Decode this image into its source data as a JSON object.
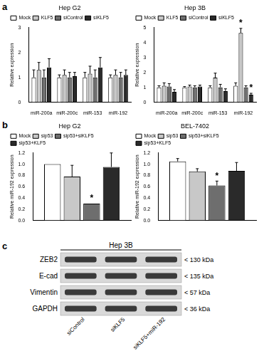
{
  "panel_labels": [
    "a",
    "b"
  ],
  "chart_data": [
    {
      "type": "bar",
      "title": "Hep G2",
      "y_label": "Relative expression",
      "categories": [
        "miR-200a",
        "miR-200c",
        "miR-153",
        "miR-192"
      ],
      "series": [
        {
          "name": "Mock",
          "color": "#ffffff",
          "values": [
            1,
            1,
            1,
            1
          ],
          "errors": [
            0.3,
            0.1,
            0.2,
            0.1
          ]
        },
        {
          "name": "KLF5",
          "color": "#c8c8c8",
          "values": [
            1.3,
            1.1,
            1.15,
            1.1
          ],
          "errors": [
            0.3,
            0.2,
            0.3,
            0.2
          ]
        },
        {
          "name": "siControl",
          "color": "#6e6e6e",
          "values": [
            1,
            1,
            1,
            1
          ],
          "errors": [
            0.3,
            0.2,
            0.3,
            0.2
          ]
        },
        {
          "name": "siKLF5",
          "color": "#2a2a2a",
          "values": [
            1.4,
            1.05,
            1.4,
            1.1
          ],
          "errors": [
            0.35,
            0.15,
            0.4,
            0.2
          ]
        }
      ],
      "ylim": [
        0,
        3
      ],
      "yticks": [
        0,
        1,
        2,
        3
      ],
      "grid": false,
      "legend": "upper left",
      "annotations": []
    },
    {
      "type": "bar",
      "title": "Hep 3B",
      "y_label": "Relative expression",
      "categories": [
        "miR-200a",
        "miR-200c",
        "miR-153",
        "miR-192"
      ],
      "series": [
        {
          "name": "Mock",
          "color": "#ffffff",
          "values": [
            1,
            1,
            1,
            1.1
          ],
          "errors": [
            0.1,
            0.05,
            0.1,
            0.2
          ]
        },
        {
          "name": "KLF5",
          "color": "#c8c8c8",
          "values": [
            1.1,
            1.05,
            1.65,
            4.65
          ],
          "errors": [
            0.2,
            0.1,
            0.3,
            0.3
          ]
        },
        {
          "name": "siControl",
          "color": "#6e6e6e",
          "values": [
            1.05,
            1,
            1,
            1
          ],
          "errors": [
            0.2,
            0.1,
            0.2,
            0.1
          ]
        },
        {
          "name": "siKLF5",
          "color": "#2a2a2a",
          "values": [
            0.7,
            1.05,
            0.75,
            0.5
          ],
          "errors": [
            0.15,
            0.1,
            0.15,
            0.1
          ]
        }
      ],
      "ylim": [
        0,
        5
      ],
      "yticks": [
        0,
        1,
        2,
        3,
        4,
        5
      ],
      "grid": false,
      "legend": "upper left",
      "annotations": [
        {
          "text": "*",
          "category": "miR-192",
          "series": "KLF5"
        },
        {
          "text": "*",
          "category": "miR-192",
          "series": "siKLF5"
        }
      ]
    },
    {
      "type": "bar",
      "title": "Hep G2",
      "y_label": "Relative miR-192 expression",
      "categories": [
        null
      ],
      "series": [
        {
          "name": "Mock",
          "color": "#ffffff",
          "values": [
            1
          ],
          "errors": [
            0
          ]
        },
        {
          "name": "sip53",
          "color": "#c8c8c8",
          "values": [
            0.78
          ],
          "errors": [
            0.2
          ]
        },
        {
          "name": "sip53+siKLF5",
          "color": "#6e6e6e",
          "values": [
            0.3
          ],
          "errors": [
            0
          ]
        },
        {
          "name": "sip53+KLF5",
          "color": "#2a2a2a",
          "values": [
            0.95
          ],
          "errors": [
            0.25
          ]
        }
      ],
      "ylim": [
        0,
        1.2
      ],
      "yticks": [
        {
          "value": 0,
          "label": "0.0"
        },
        0.2,
        0.4,
        0.6,
        0.8,
        {
          "value": 1,
          "label": "1.0"
        },
        1.2
      ],
      "grid": false,
      "legend": "upper left",
      "annotations": [
        {
          "text": "*",
          "category": null,
          "series": "sip53+siKLF5"
        }
      ]
    },
    {
      "type": "bar",
      "title": "BEL-7402",
      "y_label": "Relative miR-192 expression",
      "categories": [
        null
      ],
      "series": [
        {
          "name": "Mock",
          "color": "#ffffff",
          "values": [
            1.05
          ],
          "errors": [
            0.05
          ]
        },
        {
          "name": "sip53",
          "color": "#c8c8c8",
          "values": [
            0.87
          ],
          "errors": [
            0.05
          ]
        },
        {
          "name": "sip53+siKLF5",
          "color": "#6e6e6e",
          "values": [
            0.62
          ],
          "errors": [
            0.08
          ]
        },
        {
          "name": "sip53+KLF5",
          "color": "#2a2a2a",
          "values": [
            0.88
          ],
          "errors": [
            0.15
          ]
        }
      ],
      "ylim": [
        0,
        1.2
      ],
      "yticks": [
        {
          "value": 0,
          "label": "0.0"
        },
        0.2,
        0.4,
        0.6,
        0.8,
        {
          "value": 1,
          "label": "1.0"
        },
        1.2
      ],
      "grid": false,
      "legend": "upper left",
      "annotations": [
        {
          "text": "*",
          "category": null,
          "series": "sip53+siKLF5"
        }
      ]
    }
  ],
  "blot": {
    "label": "c",
    "title": "Hep 3B",
    "lanes": [
      "siControl",
      "siKLF5",
      "siKLF5+miR-192"
    ],
    "bands": [
      {
        "protein": "ZEB2",
        "size": "< 130 kDa"
      },
      {
        "protein": "E-cad",
        "size": "< 135 kDa"
      },
      {
        "protein": "Vimentin",
        "size": "< 57 kDa"
      },
      {
        "protein": "GAPDH",
        "size": "< 36 kDa"
      }
    ]
  }
}
